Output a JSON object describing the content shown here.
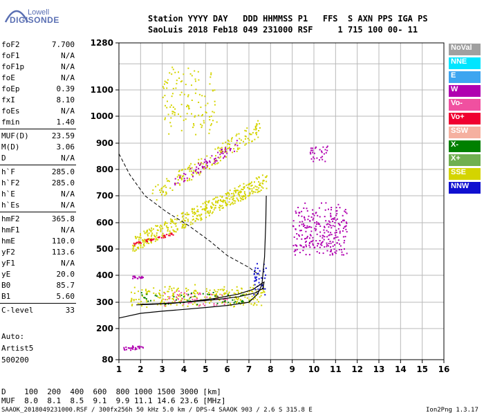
{
  "logo": {
    "top": "Lowell",
    "bottom": "DIGISONDE"
  },
  "header": {
    "line1": "Station YYYY DAY   DDD HHMMSS P1   FFS  S AXN PPS IGA PS",
    "line2": "SaoLuis 2018 Feb18 049 231000 RSF     1 715 100 00- 11"
  },
  "params": [
    {
      "k": "foF2",
      "v": "7.700"
    },
    {
      "k": "foF1",
      "v": "N/A"
    },
    {
      "k": "foF1p",
      "v": "N/A"
    },
    {
      "k": "foE",
      "v": "N/A"
    },
    {
      "k": "foEp",
      "v": "0.39"
    },
    {
      "k": "fxI",
      "v": "8.10"
    },
    {
      "k": "foEs",
      "v": "N/A"
    },
    {
      "k": "fmin",
      "v": "1.40"
    },
    {
      "k": "MUF(D)",
      "v": "23.59"
    },
    {
      "k": "M(D)",
      "v": "3.06"
    },
    {
      "k": "D",
      "v": "N/A"
    },
    {
      "k": "h`F",
      "v": "285.0"
    },
    {
      "k": "h`F2",
      "v": "285.0"
    },
    {
      "k": "h`E",
      "v": "N/A"
    },
    {
      "k": "h`Es",
      "v": "N/A"
    },
    {
      "k": "hmF2",
      "v": "365.8"
    },
    {
      "k": "hmF1",
      "v": "N/A"
    },
    {
      "k": "hmE",
      "v": "110.0"
    },
    {
      "k": "yF2",
      "v": "113.6"
    },
    {
      "k": "yF1",
      "v": "N/A"
    },
    {
      "k": "yE",
      "v": "20.0"
    },
    {
      "k": "B0",
      "v": "85.7"
    },
    {
      "k": "B1",
      "v": "5.60"
    },
    {
      "k": "C-level",
      "v": "33"
    }
  ],
  "autoscaling": {
    "l1": "Auto:",
    "l2": "Artist5",
    "l3": "500200"
  },
  "legend": [
    {
      "label": "NoVal",
      "color": "#a0a0a0"
    },
    {
      "label": "NNE",
      "color": "#00e5ff"
    },
    {
      "label": "E",
      "color": "#3da5f0"
    },
    {
      "label": "W",
      "color": "#b000b0"
    },
    {
      "label": "Vo-",
      "color": "#f050a0"
    },
    {
      "label": "Vo+",
      "color": "#f00030"
    },
    {
      "label": "SSW",
      "color": "#f5b0a0"
    },
    {
      "label": "X-",
      "color": "#008000"
    },
    {
      "label": "X+",
      "color": "#70b050"
    },
    {
      "label": "SSE",
      "color": "#d4d400"
    },
    {
      "label": "NNW",
      "color": "#1010d0"
    }
  ],
  "muf_table": {
    "row1": "D    100  200  400  600  800 1000 1500 3000 [km]",
    "row2": "MUF  8.0  8.1  8.5  9.1  9.9 11.1 14.6 23.6 [MHz]"
  },
  "footer": "SAAOK_2018049231000.RSF / 300fx256h 50 kHz 5.0 km / DPS-4 SAAOK 903 / 2.6 S 315.8 E",
  "version": "Ion2Png 1.3.17",
  "chart_data": {
    "type": "scatter",
    "xlim": [
      1,
      16
    ],
    "ylim": [
      80,
      1280
    ],
    "xticks": [
      "1",
      "2",
      "3",
      "4",
      "5",
      "6",
      "7",
      "8",
      "9",
      "10",
      "11",
      "12",
      "13",
      "14",
      "15",
      "16"
    ],
    "yticks": [
      "80",
      "200",
      "300",
      "400",
      "500",
      "600",
      "700",
      "800",
      "900",
      "1000",
      "1100",
      "1280"
    ],
    "grid": true,
    "clusters": [
      {
        "name": "F2 O-trace",
        "color": "#d4d400",
        "x0": 1.5,
        "x1": 7.7,
        "y0": 290,
        "y1": 360,
        "n": 260
      },
      {
        "name": "F2 cusp",
        "color": "#1010d0",
        "x0": 7.2,
        "x1": 7.8,
        "y0": 340,
        "y1": 440,
        "n": 40
      },
      {
        "name": "F2 multi-hop",
        "color": "#d4d400",
        "x0": 1.6,
        "x1": 7.8,
        "y0": 520,
        "y1": 760,
        "n": 420
      },
      {
        "name": "F2 multi-hop Vo+",
        "color": "#f00030",
        "x0": 1.6,
        "x1": 3.5,
        "y0": 520,
        "y1": 560,
        "n": 40
      },
      {
        "name": "third-hop",
        "color": "#d4d400",
        "x0": 2.5,
        "x1": 7.5,
        "y0": 700,
        "y1": 960,
        "n": 180
      },
      {
        "name": "third-hop W",
        "color": "#b000b0",
        "x0": 3.5,
        "x1": 6.5,
        "y0": 750,
        "y1": 900,
        "n": 70
      },
      {
        "name": "high echoes",
        "color": "#d4d400",
        "x0": 3.0,
        "x1": 5.5,
        "y0": 950,
        "y1": 1180,
        "n": 120
      },
      {
        "name": "W spread",
        "color": "#b000b0",
        "x0": 9.0,
        "x1": 11.5,
        "y0": 490,
        "y1": 660,
        "n": 260
      },
      {
        "name": "W far",
        "color": "#b000b0",
        "x0": 9.8,
        "x1": 10.6,
        "y0": 830,
        "y1": 890,
        "n": 30
      },
      {
        "name": "low layer",
        "color": "#b000b0",
        "x0": 1.2,
        "x1": 2.2,
        "y0": 120,
        "y1": 135,
        "n": 30
      },
      {
        "name": "Es",
        "color": "#b000b0",
        "x0": 1.6,
        "x1": 2.1,
        "y0": 390,
        "y1": 400,
        "n": 20
      },
      {
        "name": "Vo- scattered",
        "color": "#f050a0",
        "x0": 3.0,
        "x1": 6.0,
        "y0": 290,
        "y1": 340,
        "n": 60
      },
      {
        "name": "X- scattered",
        "color": "#008000",
        "x0": 2.0,
        "x1": 7.0,
        "y0": 295,
        "y1": 340,
        "n": 50
      }
    ],
    "profile_curve": [
      [
        1,
        240
      ],
      [
        2,
        258
      ],
      [
        3,
        266
      ],
      [
        4,
        273
      ],
      [
        5,
        280
      ],
      [
        6,
        288
      ],
      [
        7,
        300
      ],
      [
        7.4,
        330
      ],
      [
        7.6,
        365
      ],
      [
        7.72,
        470
      ],
      [
        7.78,
        600
      ],
      [
        7.8,
        700
      ]
    ],
    "virtual_curve": [
      [
        1.8,
        290
      ],
      [
        2.5,
        292
      ],
      [
        3.5,
        296
      ],
      [
        4.5,
        305
      ],
      [
        5.5,
        315
      ],
      [
        6.5,
        330
      ],
      [
        7.2,
        348
      ],
      [
        7.5,
        365
      ],
      [
        7.7,
        375
      ],
      [
        7.65,
        352
      ],
      [
        7.3,
        335
      ],
      [
        6.5,
        320
      ],
      [
        5.5,
        310
      ],
      [
        4,
        300
      ],
      [
        3,
        295
      ],
      [
        2,
        292
      ]
    ],
    "dashed_curve": [
      [
        1,
        860
      ],
      [
        1.5,
        780
      ],
      [
        2.2,
        700
      ],
      [
        3.2,
        640
      ],
      [
        4.2,
        590
      ],
      [
        5.2,
        530
      ],
      [
        6,
        475
      ],
      [
        7,
        430
      ],
      [
        7.5,
        400
      ]
    ],
    "axes": {
      "xlabel": "",
      "ylabel": ""
    }
  }
}
